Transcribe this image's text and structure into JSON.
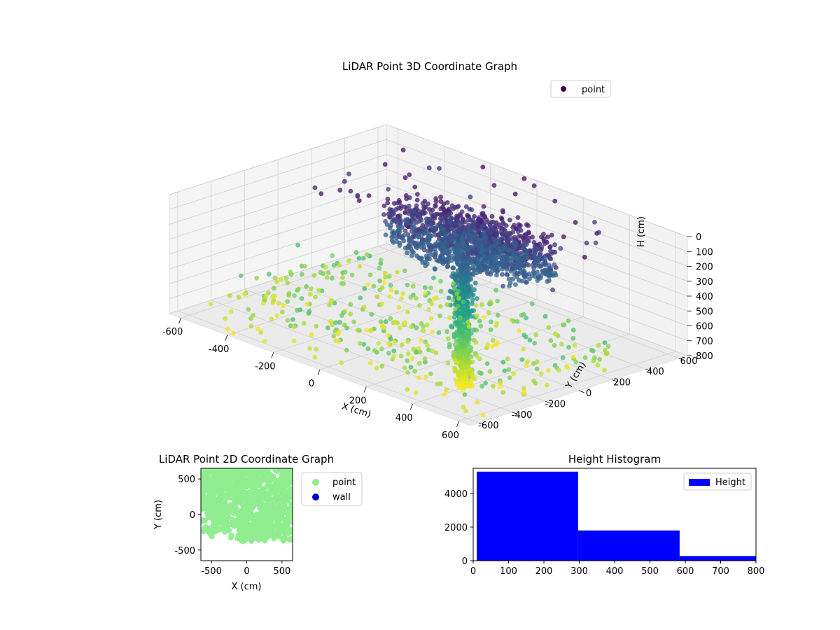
{
  "chart_data": [
    {
      "type": "scatter",
      "dimensions": 3,
      "title": "LiDAR Point 3D Coordinate Graph",
      "xlabel": "X (cm)",
      "ylabel": "Y (cm)",
      "zlabel": "H (cm)",
      "xlim": [
        -650,
        650
      ],
      "ylim": [
        -650,
        650
      ],
      "zlim": [
        800,
        0
      ],
      "z_inverted": true,
      "xticks": [
        -600,
        -400,
        -200,
        0,
        200,
        400,
        600
      ],
      "yticks": [
        -600,
        -400,
        -200,
        0,
        200,
        400,
        600
      ],
      "zticks": [
        0,
        100,
        200,
        300,
        400,
        500,
        600,
        700,
        800
      ],
      "colormap": "viridis",
      "color_by": "height",
      "legend": {
        "position": "top-right",
        "entries": [
          {
            "name": "point",
            "color": "#440154"
          }
        ]
      },
      "grid": true,
      "series": [
        {
          "name": "point"
        }
      ]
    },
    {
      "type": "scatter",
      "title": "LiDAR Point 2D Coordinate Graph",
      "xlabel": "X (cm)",
      "ylabel": "Y (cm)",
      "xlim": [
        -650,
        650
      ],
      "ylim": [
        -650,
        650
      ],
      "xticks": [
        -500,
        0,
        500
      ],
      "yticks": [
        -500,
        0,
        500
      ],
      "legend": {
        "position": "outside-right",
        "entries": [
          {
            "name": "point",
            "color": "#90ee90"
          },
          {
            "name": "wall",
            "color": "#0000cd"
          }
        ]
      },
      "series": [
        {
          "name": "point",
          "color": "#90ee90"
        },
        {
          "name": "wall",
          "color": "#0000cd",
          "x": [],
          "y": []
        }
      ]
    },
    {
      "type": "bar",
      "subtype": "histogram",
      "title": "Height Histogram",
      "xlim": [
        0,
        800
      ],
      "ylim": [
        0,
        5500
      ],
      "xticks": [
        0,
        100,
        200,
        300,
        400,
        500,
        600,
        700,
        800
      ],
      "yticks": [
        0,
        2000,
        4000
      ],
      "bins": [
        [
          10,
          297
        ],
        [
          297,
          584
        ],
        [
          584,
          871
        ]
      ],
      "values": [
        5300,
        1800,
        280
      ],
      "color": "#0000ff",
      "legend": {
        "position": "top-right",
        "entries": [
          {
            "name": "Height",
            "color": "#0000ff"
          }
        ]
      },
      "series": [
        {
          "name": "Height",
          "values": [
            5300,
            1800,
            280
          ]
        }
      ]
    }
  ]
}
